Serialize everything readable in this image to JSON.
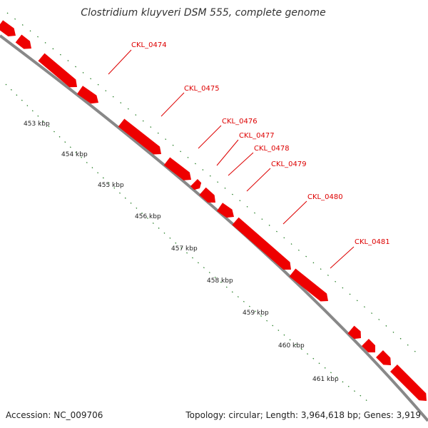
{
  "title": "Clostridium kluyveri DSM 555, complete genome",
  "footer": {
    "accession": "Accession: NC_009706",
    "summary": "Topology: circular; Length: 3,964,618 bp; Genes: 3,919"
  },
  "colors": {
    "gene": "#ee0000",
    "gene_label": "#dd0000",
    "backbone": "#888888",
    "ticks": "#1f7a1f"
  },
  "genes": [
    {
      "label": "CKL_0474"
    },
    {
      "label": "CKL_0475"
    },
    {
      "label": "CKL_0476"
    },
    {
      "label": "CKL_0477"
    },
    {
      "label": "CKL_0478"
    },
    {
      "label": "CKL_0479"
    },
    {
      "label": "CKL_0480"
    },
    {
      "label": "CKL_0481"
    }
  ],
  "scale_labels": [
    "453 kbp",
    "454 kbp",
    "455 kbp",
    "456 kbp",
    "457 kbp",
    "458 kbp",
    "459 kbp",
    "460 kbp",
    "461 kbp"
  ]
}
